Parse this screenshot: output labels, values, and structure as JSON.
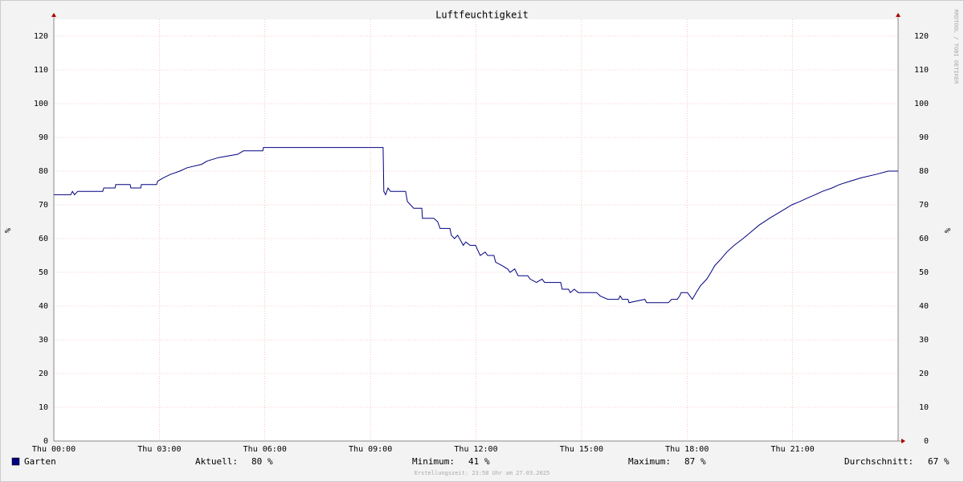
{
  "chart_data": {
    "type": "line",
    "title": "Luftfeuchtigkeit",
    "ylabel": "%",
    "watermark": "RRDTOOL / TOBI OETIKER",
    "footer": "Erstellungszeit: 23:58 Uhr am 27.03.2025",
    "xlim": [
      0,
      24
    ],
    "ylim": [
      0,
      125
    ],
    "xticks": [
      {
        "value": 0,
        "label": "Thu 00:00"
      },
      {
        "value": 3,
        "label": "Thu 03:00"
      },
      {
        "value": 6,
        "label": "Thu 06:00"
      },
      {
        "value": 9,
        "label": "Thu 09:00"
      },
      {
        "value": 12,
        "label": "Thu 12:00"
      },
      {
        "value": 15,
        "label": "Thu 15:00"
      },
      {
        "value": 18,
        "label": "Thu 18:00"
      },
      {
        "value": 21,
        "label": "Thu 21:00"
      }
    ],
    "yticks": [
      0,
      10,
      20,
      30,
      40,
      50,
      60,
      70,
      80,
      90,
      100,
      110,
      120
    ],
    "grid": true,
    "x": [
      0,
      0.48,
      0.53,
      0.59,
      0.68,
      1.39,
      1.42,
      1.74,
      1.76,
      2.17,
      2.19,
      2.47,
      2.49,
      2.92,
      2.95,
      3.11,
      3.31,
      3.58,
      3.79,
      4.2,
      4.36,
      4.68,
      5.23,
      5.39,
      5.94,
      5.96,
      9.36,
      9.38,
      9.43,
      9.5,
      9.57,
      10.0,
      10.05,
      10.14,
      10.23,
      10.46,
      10.48,
      10.8,
      10.91,
      10.98,
      11.26,
      11.3,
      11.39,
      11.48,
      11.64,
      11.71,
      11.83,
      11.99,
      12.03,
      12.12,
      12.26,
      12.33,
      12.51,
      12.56,
      12.74,
      12.9,
      12.97,
      13.1,
      13.2,
      13.47,
      13.54,
      13.72,
      13.88,
      13.95,
      14.41,
      14.45,
      14.63,
      14.68,
      14.79,
      14.91,
      15.43,
      15.53,
      15.75,
      16.05,
      16.1,
      16.16,
      16.32,
      16.35,
      16.8,
      16.85,
      17.47,
      17.56,
      17.72,
      17.79,
      17.83,
      18.01,
      18.15,
      18.26,
      18.38,
      18.56,
      18.68,
      18.79,
      18.97,
      19.13,
      19.34,
      19.59,
      19.82,
      20.05,
      20.34,
      20.66,
      20.98,
      21.21,
      21.42,
      21.64,
      21.85,
      22.12,
      22.33,
      22.63,
      22.95,
      23.36,
      23.72,
      24.0
    ],
    "series": [
      {
        "name": "Garten",
        "color": "#000080",
        "values": [
          73,
          73,
          74,
          73,
          74,
          74,
          75,
          75,
          76,
          76,
          75,
          75,
          76,
          76,
          77,
          78,
          79,
          80,
          81,
          82,
          83,
          84,
          85,
          86,
          86,
          87,
          87,
          74,
          73,
          75,
          74,
          74,
          71,
          70,
          69,
          69,
          66,
          66,
          65,
          63,
          63,
          61,
          60,
          61,
          58,
          59,
          58,
          58,
          57,
          55,
          56,
          55,
          55,
          53,
          52,
          51,
          50,
          51,
          49,
          49,
          48,
          47,
          48,
          47,
          47,
          45,
          45,
          44,
          45,
          44,
          44,
          43,
          42,
          42,
          43,
          42,
          42,
          41,
          42,
          41,
          41,
          42,
          42,
          43,
          44,
          44,
          42,
          44,
          46,
          48,
          50,
          52,
          54,
          56,
          58,
          60,
          62,
          64,
          66,
          68,
          70,
          71,
          72,
          73,
          74,
          75,
          76,
          77,
          78,
          79,
          80,
          80
        ]
      }
    ],
    "stats": [
      {
        "label": "Aktuell:",
        "value": 80,
        "unit": "%"
      },
      {
        "label": "Minimum:",
        "value": 41,
        "unit": "%"
      },
      {
        "label": "Maximum:",
        "value": 87,
        "unit": "%"
      },
      {
        "label": "Durchschnitt:",
        "value": 67,
        "unit": "%"
      }
    ]
  }
}
